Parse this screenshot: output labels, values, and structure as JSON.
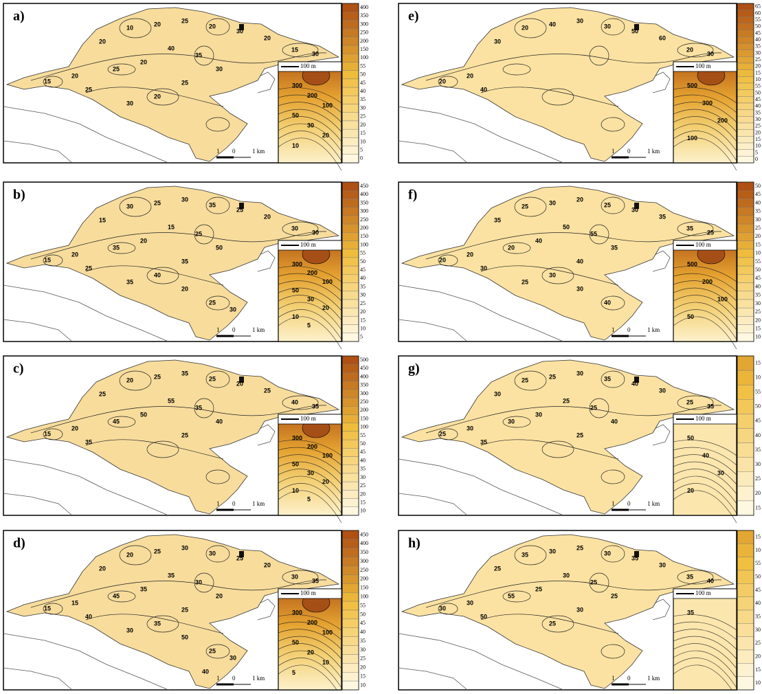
{
  "panels": [
    {
      "label": "a)",
      "colorbar": [
        400,
        350,
        300,
        250,
        200,
        150,
        100,
        55,
        50,
        45,
        40,
        35,
        30,
        25,
        20,
        15,
        10,
        5,
        0
      ],
      "contour_labels": [
        15,
        20,
        20,
        10,
        20,
        25,
        20,
        30,
        20,
        15,
        30,
        25,
        25,
        20,
        40,
        35,
        30,
        25,
        20,
        30
      ],
      "inset_labels": [
        300,
        200,
        100,
        50,
        30,
        20,
        10
      ],
      "inset_scale": "100 m",
      "scale": [
        "1",
        "0",
        "1 km"
      ]
    },
    {
      "label": "b)",
      "colorbar": [
        450,
        400,
        350,
        300,
        250,
        200,
        150,
        100,
        55,
        50,
        45,
        40,
        35,
        30,
        25,
        20,
        15,
        10,
        5
      ],
      "contour_labels": [
        15,
        20,
        15,
        30,
        25,
        30,
        35,
        25,
        20,
        30,
        30,
        25,
        35,
        20,
        15,
        25,
        50,
        35,
        40,
        35,
        20,
        25,
        30
      ],
      "inset_labels": [
        300,
        200,
        100,
        50,
        30,
        20,
        10,
        5
      ],
      "inset_scale": "100 m",
      "scale": [
        "1",
        "0",
        "1 km"
      ]
    },
    {
      "label": "c)",
      "colorbar": [
        500,
        450,
        400,
        350,
        300,
        250,
        200,
        150,
        100,
        55,
        50,
        45,
        40,
        35,
        30,
        25,
        20,
        15,
        10
      ],
      "contour_labels": [
        15,
        20,
        25,
        20,
        25,
        35,
        25,
        20,
        25,
        40,
        35,
        35,
        45,
        50,
        55,
        35,
        40,
        25
      ],
      "inset_labels": [
        300,
        200,
        100,
        50,
        30,
        20,
        10,
        5
      ],
      "inset_scale": "100 m",
      "scale": [
        "1",
        "0",
        "1 km"
      ]
    },
    {
      "label": "d)",
      "colorbar": [
        450,
        400,
        350,
        300,
        250,
        200,
        150,
        100,
        55,
        50,
        45,
        40,
        35,
        30,
        25,
        20,
        15,
        10
      ],
      "contour_labels": [
        15,
        15,
        20,
        20,
        25,
        30,
        30,
        25,
        20,
        30,
        35,
        40,
        45,
        35,
        35,
        30,
        20,
        25,
        35,
        30,
        50,
        25,
        30,
        40
      ],
      "inset_labels": [
        300,
        200,
        100,
        50,
        20,
        10,
        5
      ],
      "inset_scale": "100 m",
      "scale": [
        "1",
        "0",
        "1 km"
      ]
    },
    {
      "label": "e)",
      "colorbar": [
        65,
        60,
        55,
        50,
        45,
        40,
        35,
        30,
        25,
        20,
        15,
        10,
        55,
        50,
        45,
        40,
        35,
        30,
        25,
        20,
        15,
        10,
        5,
        0
      ],
      "contour_labels": [
        20,
        20,
        30,
        20,
        40,
        30,
        30,
        50,
        60,
        20,
        30,
        40
      ],
      "inset_labels": [
        500,
        300,
        200,
        100
      ],
      "inset_scale": "100 m",
      "scale": [
        "1",
        "0",
        "1 km"
      ]
    },
    {
      "label": "f)",
      "colorbar": [
        50,
        45,
        40,
        35,
        30,
        25,
        20,
        15,
        10,
        55,
        50,
        45,
        40,
        35,
        30,
        25,
        20,
        15,
        10
      ],
      "contour_labels": [
        20,
        20,
        35,
        25,
        30,
        20,
        25,
        30,
        35,
        35,
        25,
        30,
        20,
        40,
        50,
        55,
        35,
        40,
        30,
        25,
        30,
        40
      ],
      "inset_labels": [
        500,
        200,
        100,
        50
      ],
      "inset_scale": "100 m",
      "scale": [
        "1",
        "0",
        "1 km"
      ]
    },
    {
      "label": "g)",
      "colorbar": [
        15,
        10,
        55,
        50,
        45,
        40,
        35,
        30,
        25,
        20,
        15
      ],
      "contour_labels": [
        25,
        30,
        30,
        25,
        25,
        30,
        35,
        40,
        30,
        25,
        35,
        35,
        30,
        30,
        25,
        25,
        40,
        25
      ],
      "inset_labels": [
        50,
        40,
        30,
        20
      ],
      "inset_scale": "100 m",
      "scale": [
        "1",
        "0",
        "1 km"
      ]
    },
    {
      "label": "h)",
      "colorbar": [
        15,
        10,
        55,
        50,
        45,
        40,
        35,
        30,
        25,
        20,
        15,
        10
      ],
      "contour_labels": [
        30,
        30,
        25,
        35,
        30,
        25,
        30,
        35,
        30,
        35,
        40,
        50,
        55,
        25,
        30,
        25,
        25,
        30,
        25
      ],
      "inset_labels": [
        35
      ],
      "inset_scale": "100 m",
      "scale": [
        "1",
        "0",
        "1 km"
      ]
    }
  ]
}
